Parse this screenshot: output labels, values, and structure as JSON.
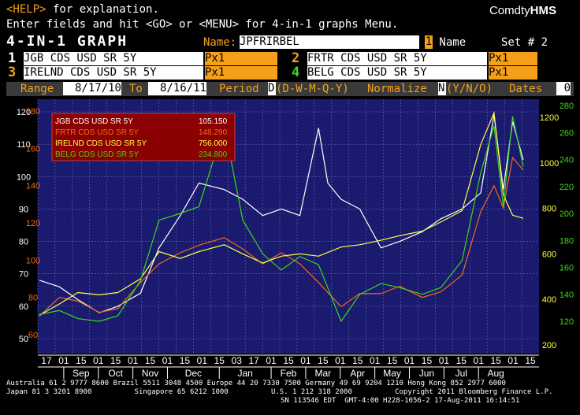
{
  "header": {
    "help_key": "<HELP>",
    "help_text": " for explanation.",
    "line2": "Enter fields and hit <GO> or <MENU> for 4-in-1 graphs Menu.",
    "brand_plain": "Comdty",
    "brand_bold": "HMS",
    "screen_title": "4-IN-1 GRAPH",
    "name_label": "Name:",
    "name_value": "JPFRIRBEL",
    "name_num": "1",
    "name_suffix": " Name",
    "set_label": "Set # 2"
  },
  "series_fields": [
    {
      "num": "1",
      "ticker": "JGB CDS USD SR 5Y",
      "field": "Px1"
    },
    {
      "num": "2",
      "ticker": "FRTR CDS USD SR 5Y",
      "field": "Px1"
    },
    {
      "num": "3",
      "ticker": "IRELND CDS USD SR 5Y",
      "field": "Px1"
    },
    {
      "num": "4",
      "ticker": "BELG CDS USD SR 5Y",
      "field": "Px1"
    }
  ],
  "range_bar": {
    "range_label": "Range",
    "start": "8/17/10",
    "to_label": "To",
    "end": "8/16/11",
    "period_label": "Period",
    "period_value": "D",
    "period_options": "(D-W-M-Q-Y)",
    "normalize_label": "Normalize",
    "normalize_value": "N",
    "normalize_options": "(Y/N/O)",
    "dates_label": "Dates",
    "dates_value": "0"
  },
  "legend": [
    {
      "label": "JGB CDS USD SR 5Y",
      "value": "105.150",
      "color": "#ffffff"
    },
    {
      "label": "FRTR CDS USD SR 5Y",
      "value": "148.290",
      "color": "#f26a1b"
    },
    {
      "label": "IRELND CDS USD SR 5Y",
      "value": "756.000",
      "color": "#ffff4a"
    },
    {
      "label": "BELG CDS USD SR 5Y",
      "value": "234.800",
      "color": "#3ed61c"
    }
  ],
  "colors": {
    "plot_bg": "#1a1a6e",
    "grid": "#6b6bb0",
    "white": "#ffffff",
    "orange": "#f26a1b",
    "yellow": "#ffff4a",
    "green": "#3ed61c",
    "amber": "#f6a01a"
  },
  "chart_data": {
    "type": "line",
    "title": "",
    "axes": {
      "left_white": {
        "ticks": [
          "120",
          "110",
          "100",
          "90",
          "80",
          "70",
          "60",
          "50"
        ]
      },
      "left_orange": {
        "ticks": [
          "180",
          "160",
          "140",
          "120",
          "100",
          "80",
          "60"
        ]
      },
      "right_yellow": {
        "ticks": [
          "1200",
          "1000",
          "800",
          "600",
          "400",
          "200"
        ]
      },
      "right_green": {
        "ticks": [
          "280",
          "260",
          "240",
          "220",
          "200",
          "180",
          "160",
          "140",
          "120"
        ]
      }
    },
    "x_day_labels": [
      "17",
      "01",
      "15",
      "01",
      "15",
      "01",
      "15",
      "01",
      "15",
      "01",
      "15",
      "03",
      "17",
      "01",
      "15",
      "01",
      "15",
      "01",
      "15",
      "01",
      "15",
      "01",
      "15",
      "01",
      "15",
      "01",
      "15",
      "01",
      "15"
    ],
    "x_month_labels": [
      "Sep",
      "Oct",
      "Nov",
      "Dec",
      "Jan",
      "Feb",
      "Mar",
      "Apr",
      "May",
      "Jun",
      "Jul",
      "Aug"
    ],
    "series": [
      {
        "name": "JGB CDS USD SR 5Y",
        "axis": "left_white",
        "points": [
          [
            "8/17/10",
            68
          ],
          [
            "9/1/10",
            66
          ],
          [
            "9/15/10",
            62
          ],
          [
            "10/1/10",
            58
          ],
          [
            "10/15/10",
            60
          ],
          [
            "11/1/10",
            64
          ],
          [
            "11/15/10",
            78
          ],
          [
            "12/1/10",
            88
          ],
          [
            "12/15/10",
            98
          ],
          [
            "1/3/11",
            96
          ],
          [
            "1/17/11",
            93
          ],
          [
            "2/1/11",
            88
          ],
          [
            "2/15/11",
            90
          ],
          [
            "3/1/11",
            88
          ],
          [
            "3/15/11",
            115
          ],
          [
            "3/22/11",
            98
          ],
          [
            "4/1/11",
            93
          ],
          [
            "4/15/11",
            90
          ],
          [
            "5/1/11",
            78
          ],
          [
            "5/15/11",
            80
          ],
          [
            "6/1/11",
            83
          ],
          [
            "6/15/11",
            87
          ],
          [
            "7/1/11",
            90
          ],
          [
            "7/15/11",
            95
          ],
          [
            "7/25/11",
            119
          ],
          [
            "8/1/11",
            96
          ],
          [
            "8/8/11",
            117
          ],
          [
            "8/16/11",
            105.15
          ]
        ]
      },
      {
        "name": "FRTR CDS USD SR 5Y",
        "axis": "left_orange",
        "points": [
          [
            "8/17/10",
            70
          ],
          [
            "9/1/10",
            80
          ],
          [
            "9/15/10",
            78
          ],
          [
            "10/1/10",
            72
          ],
          [
            "10/15/10",
            74
          ],
          [
            "11/1/10",
            88
          ],
          [
            "11/15/10",
            98
          ],
          [
            "12/1/10",
            104
          ],
          [
            "12/15/10",
            108
          ],
          [
            "1/3/11",
            112
          ],
          [
            "1/17/11",
            106
          ],
          [
            "2/1/11",
            98
          ],
          [
            "2/15/11",
            104
          ],
          [
            "3/1/11",
            98
          ],
          [
            "3/15/11",
            88
          ],
          [
            "4/1/11",
            75
          ],
          [
            "4/15/11",
            82
          ],
          [
            "5/1/11",
            82
          ],
          [
            "5/15/11",
            86
          ],
          [
            "6/1/11",
            80
          ],
          [
            "6/15/11",
            83
          ],
          [
            "7/1/11",
            92
          ],
          [
            "7/15/11",
            126
          ],
          [
            "7/25/11",
            140
          ],
          [
            "8/1/11",
            128
          ],
          [
            "8/8/11",
            155
          ],
          [
            "8/16/11",
            148.29
          ]
        ]
      },
      {
        "name": "IRELND CDS USD SR 5Y",
        "axis": "right_yellow",
        "points": [
          [
            "8/17/10",
            330
          ],
          [
            "9/1/10",
            380
          ],
          [
            "9/15/10",
            430
          ],
          [
            "10/1/10",
            420
          ],
          [
            "10/15/10",
            430
          ],
          [
            "11/1/10",
            490
          ],
          [
            "11/15/10",
            610
          ],
          [
            "12/1/10",
            580
          ],
          [
            "12/15/10",
            610
          ],
          [
            "1/3/11",
            640
          ],
          [
            "1/17/11",
            600
          ],
          [
            "2/1/11",
            560
          ],
          [
            "2/15/11",
            590
          ],
          [
            "3/1/11",
            600
          ],
          [
            "3/15/11",
            590
          ],
          [
            "4/1/11",
            630
          ],
          [
            "4/15/11",
            640
          ],
          [
            "5/1/11",
            660
          ],
          [
            "5/15/11",
            680
          ],
          [
            "6/1/11",
            700
          ],
          [
            "6/15/11",
            740
          ],
          [
            "7/1/11",
            790
          ],
          [
            "7/15/11",
            1080
          ],
          [
            "7/25/11",
            1220
          ],
          [
            "8/1/11",
            860
          ],
          [
            "8/8/11",
            770
          ],
          [
            "8/16/11",
            756
          ]
        ]
      },
      {
        "name": "BELG CDS USD SR 5Y",
        "axis": "right_green",
        "points": [
          [
            "8/17/10",
            125
          ],
          [
            "9/1/10",
            128
          ],
          [
            "9/15/10",
            122
          ],
          [
            "10/1/10",
            120
          ],
          [
            "10/15/10",
            124
          ],
          [
            "11/1/10",
            150
          ],
          [
            "11/15/10",
            195
          ],
          [
            "12/1/10",
            200
          ],
          [
            "12/15/10",
            205
          ],
          [
            "1/3/11",
            265
          ],
          [
            "1/17/11",
            195
          ],
          [
            "2/1/11",
            170
          ],
          [
            "2/15/11",
            158
          ],
          [
            "3/1/11",
            168
          ],
          [
            "3/15/11",
            162
          ],
          [
            "4/1/11",
            120
          ],
          [
            "4/15/11",
            140
          ],
          [
            "5/1/11",
            148
          ],
          [
            "5/15/11",
            145
          ],
          [
            "6/1/11",
            140
          ],
          [
            "6/15/11",
            145
          ],
          [
            "7/1/11",
            165
          ],
          [
            "7/15/11",
            230
          ],
          [
            "7/25/11",
            265
          ],
          [
            "8/1/11",
            205
          ],
          [
            "8/8/11",
            272
          ],
          [
            "8/16/11",
            234.8
          ]
        ]
      }
    ],
    "grid": true,
    "legend_position": "top-left"
  },
  "footer": {
    "line1": "Australia 61 2 9777 8600 Brazil 5511 3048 4500 Europe 44 20 7330 7500 Germany 49 69 9204 1210 Hong Kong 852 2977 6000",
    "line2": "Japan 81 3 3201 8900          Singapore 65 6212 1000          U.S. 1 212 318 2000          Copyright 2011 Bloomberg Finance L.P.",
    "line3": "SN 113546 EDT  GMT-4:00 H228-1056-2 17-Aug-2011 16:14:51"
  }
}
